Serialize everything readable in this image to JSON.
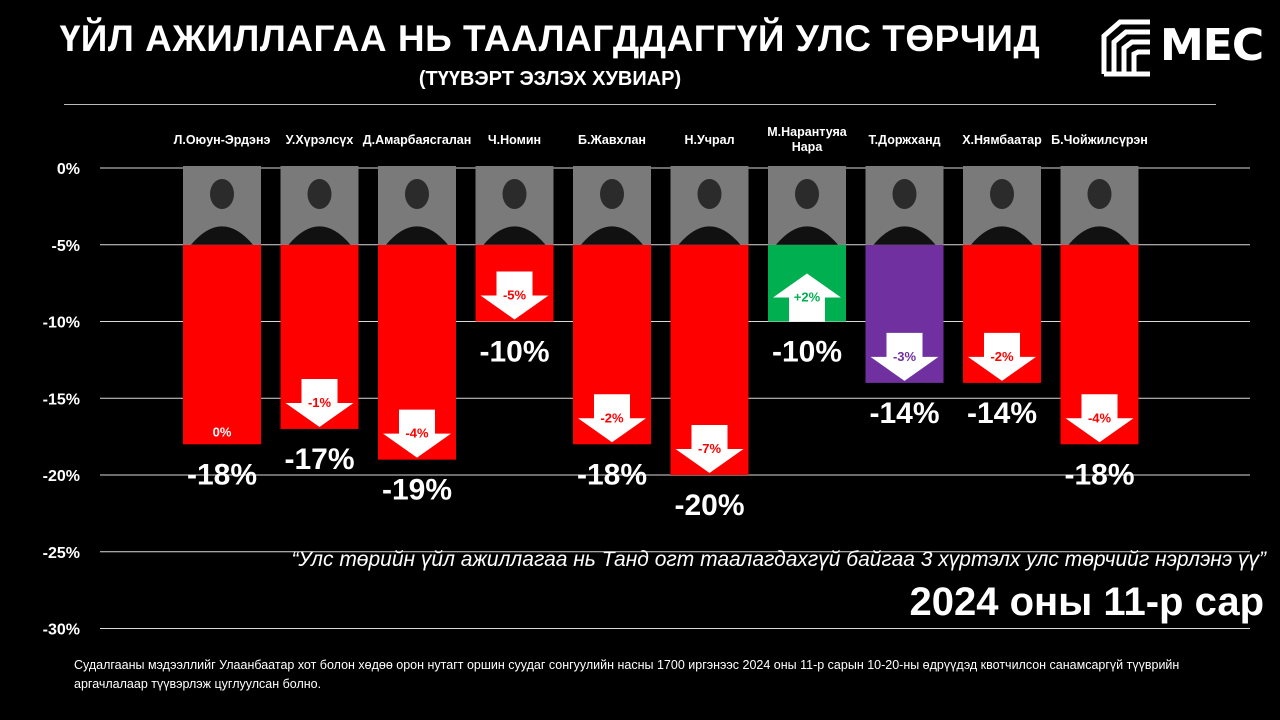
{
  "header": {
    "title": "ҮЙЛ АЖИЛЛАГАА НЬ ТААЛАГДДАГГҮЙ УЛС ТӨРЧИД",
    "subtitle": "(ТҮҮВЭРТ ЭЗЛЭХ ХУВИАР)"
  },
  "logo": {
    "text": "MEC",
    "icon": "mec-logo-mark"
  },
  "question": "“Улс төрийн үйл ажиллагаа нь Танд огт таалагдахгүй байгаа 3 хүртэлх улс төрчийг нэрлэнэ үү”",
  "date": "2024 оны 11-р сар",
  "footnote": "Судалгааны мэдээллийг Улаанбаатар хот болон хөдөө орон нутагт оршин суудаг сонгуулийн насны 1700 иргэнээс 2024 оны 11-р сарын 10-20-ны өдрүүдэд квотчилсон санамсаргүй түүврийн аргачлалаар түүвэрлэж цуглуулсан болно.",
  "chart_data": {
    "type": "bar",
    "ylim": [
      -30,
      0
    ],
    "yticks": [
      "0%",
      "-5%",
      "-10%",
      "-15%",
      "-20%",
      "-25%",
      "-30%"
    ],
    "grid": true,
    "categories": [
      "Л.Оюун-Эрдэнэ",
      "У.Хүрэлсүх",
      "Д.Амарбаясгалан",
      "Ч.Номин",
      "Б.Жавхлан",
      "Н.Учрал",
      "М.Нарантуяа Нара",
      "Т.Доржханд",
      "Х.Нямбаатар",
      "Б.Чойжилсүрэн"
    ],
    "values": [
      -18,
      -17,
      -19,
      -10,
      -18,
      -20,
      -10,
      -14,
      -14,
      -18
    ],
    "value_labels": [
      "-18%",
      "-17%",
      "-19%",
      "-10%",
      "-18%",
      "-20%",
      "-10%",
      "-14%",
      "-14%",
      "-18%"
    ],
    "changes": [
      0,
      -1,
      -4,
      -5,
      -2,
      -7,
      2,
      -3,
      -2,
      -4
    ],
    "change_labels": [
      "0%",
      "-1%",
      "-4%",
      "-5%",
      "-2%",
      "-7%",
      "+2%",
      "-3%",
      "-2%",
      "-4%"
    ],
    "bar_colors": [
      "#ff0000",
      "#ff0000",
      "#ff0000",
      "#ff0000",
      "#ff0000",
      "#ff0000",
      "#00b050",
      "#7030a0",
      "#ff0000",
      "#ff0000"
    ],
    "change_label_colors": [
      "#ff0000",
      "#ff0000",
      "#ff0000",
      "#ff0000",
      "#ff0000",
      "#ff0000",
      "#00b050",
      "#7030a0",
      "#ff0000",
      "#ff0000"
    ]
  }
}
